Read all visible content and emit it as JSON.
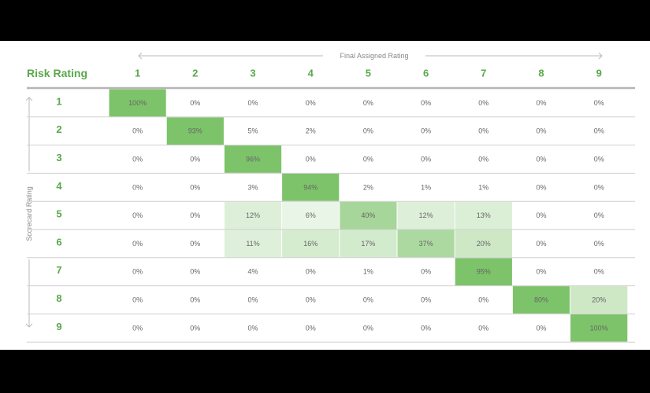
{
  "chart_data": {
    "type": "heatmap",
    "title": "Risk Rating",
    "x_axis_label": "Final Assigned Rating",
    "y_axis_label": "Scorecard Rating",
    "columns": [
      "1",
      "2",
      "3",
      "4",
      "5",
      "6",
      "7",
      "8",
      "9"
    ],
    "rows": [
      "1",
      "2",
      "3",
      "4",
      "5",
      "6",
      "7",
      "8",
      "9"
    ],
    "values": [
      [
        "100%",
        "0%",
        "0%",
        "0%",
        "0%",
        "0%",
        "0%",
        "0%",
        "0%"
      ],
      [
        "0%",
        "93%",
        "5%",
        "2%",
        "0%",
        "0%",
        "0%",
        "0%",
        "0%"
      ],
      [
        "0%",
        "0%",
        "96%",
        "0%",
        "0%",
        "0%",
        "0%",
        "0%",
        "0%"
      ],
      [
        "0%",
        "0%",
        "3%",
        "94%",
        "2%",
        "1%",
        "1%",
        "0%",
        "0%"
      ],
      [
        "0%",
        "0%",
        "12%",
        "6%",
        "40%",
        "12%",
        "13%",
        "0%",
        "0%"
      ],
      [
        "0%",
        "0%",
        "11%",
        "16%",
        "17%",
        "37%",
        "20%",
        "0%",
        "0%"
      ],
      [
        "0%",
        "0%",
        "4%",
        "0%",
        "1%",
        "0%",
        "95%",
        "0%",
        "0%"
      ],
      [
        "0%",
        "0%",
        "0%",
        "0%",
        "0%",
        "0%",
        "0%",
        "80%",
        "20%"
      ],
      [
        "0%",
        "0%",
        "0%",
        "0%",
        "0%",
        "0%",
        "0%",
        "0%",
        "100%"
      ]
    ],
    "color_scale": {
      "low": "#ffffff",
      "high": "#7dc36a"
    }
  }
}
